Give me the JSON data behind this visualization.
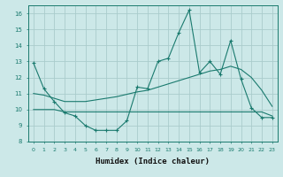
{
  "xlabel": "Humidex (Indice chaleur)",
  "background_color": "#cce8e8",
  "grid_color": "#aacccc",
  "line_color": "#1a7a6e",
  "xlim": [
    -0.5,
    23.5
  ],
  "ylim": [
    8,
    16.5
  ],
  "yticks": [
    8,
    9,
    10,
    11,
    12,
    13,
    14,
    15,
    16
  ],
  "xticks": [
    0,
    1,
    2,
    3,
    4,
    5,
    6,
    7,
    8,
    9,
    10,
    11,
    12,
    13,
    14,
    15,
    16,
    17,
    18,
    19,
    20,
    21,
    22,
    23
  ],
  "x": [
    0,
    1,
    2,
    3,
    4,
    5,
    6,
    7,
    8,
    9,
    10,
    11,
    12,
    13,
    14,
    15,
    16,
    17,
    18,
    19,
    20,
    21,
    22,
    23
  ],
  "line_max": [
    12.9,
    11.3,
    10.5,
    9.8,
    9.6,
    9.0,
    8.7,
    8.7,
    8.7,
    9.3,
    11.4,
    11.3,
    13.0,
    13.2,
    14.8,
    16.2,
    12.3,
    13.0,
    12.2,
    14.3,
    11.9,
    10.1,
    9.5,
    9.5
  ],
  "line_mean": [
    11.0,
    10.9,
    10.7,
    10.5,
    10.5,
    10.5,
    10.6,
    10.7,
    10.8,
    10.95,
    11.1,
    11.2,
    11.4,
    11.6,
    11.8,
    12.0,
    12.2,
    12.4,
    12.5,
    12.7,
    12.5,
    12.0,
    11.2,
    10.2
  ],
  "line_min": [
    10.0,
    10.0,
    10.0,
    9.85,
    9.85,
    9.85,
    9.85,
    9.85,
    9.85,
    9.85,
    9.85,
    9.85,
    9.85,
    9.85,
    9.85,
    9.85,
    9.85,
    9.85,
    9.85,
    9.85,
    9.85,
    9.85,
    9.85,
    9.6
  ]
}
